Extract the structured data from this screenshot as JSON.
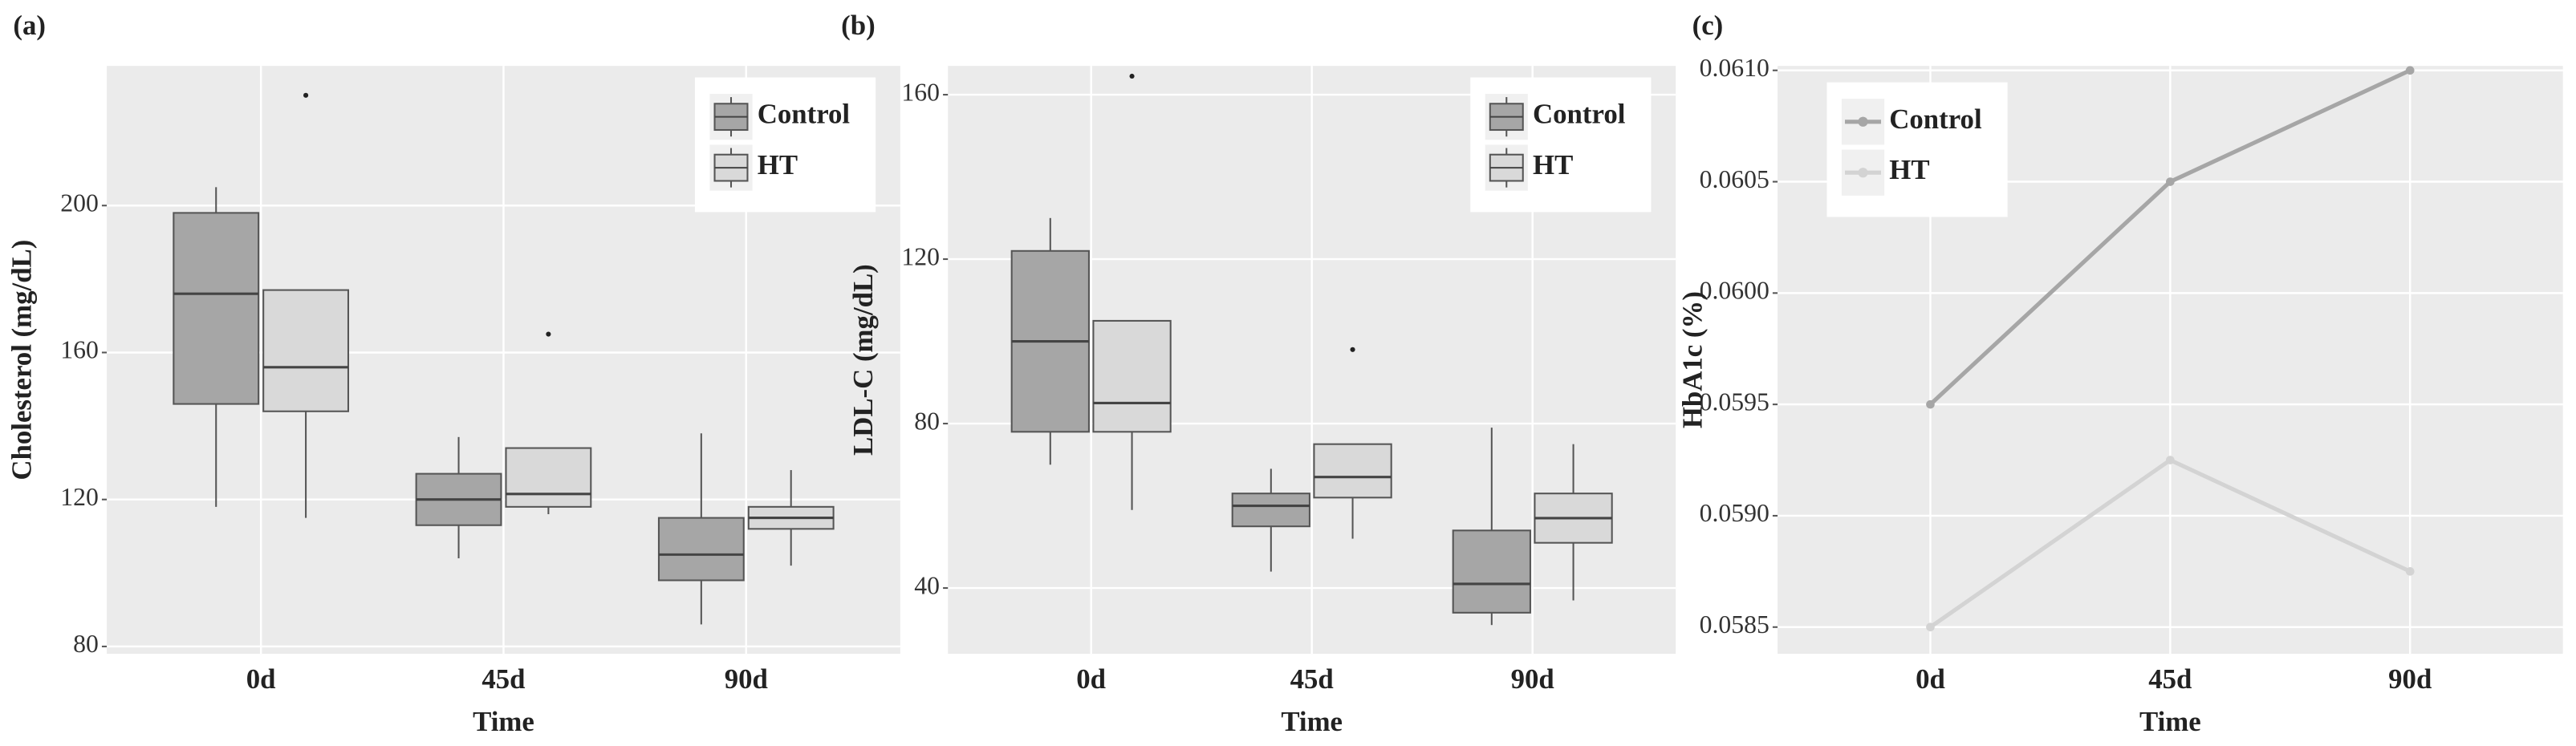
{
  "chart_data": [
    {
      "type": "box",
      "label": "(a)",
      "x_label": "Time",
      "y_label": "Cholesterol (mg/dL)",
      "categories": [
        "0d",
        "45d",
        "90d"
      ],
      "ylim": [
        78,
        238
      ],
      "yticks": [
        80,
        120,
        160,
        200
      ],
      "grid": true,
      "legend": "top-right",
      "series": [
        {
          "name": "Control",
          "color": "#a6a6a6",
          "boxes": [
            {
              "whislo": 118,
              "q1": 146,
              "med": 176,
              "q3": 198,
              "whishi": 205,
              "fliers": []
            },
            {
              "whislo": 104,
              "q1": 113,
              "med": 120,
              "q3": 127,
              "whishi": 137,
              "fliers": []
            },
            {
              "whislo": 86,
              "q1": 98,
              "med": 105,
              "q3": 115,
              "whishi": 138,
              "fliers": []
            }
          ]
        },
        {
          "name": "HT",
          "color": "#d9d9d9",
          "boxes": [
            {
              "whislo": 115,
              "q1": 144,
              "med": 156,
              "q3": 177,
              "whishi": 177,
              "fliers": [
                230
              ]
            },
            {
              "whislo": 116,
              "q1": 118,
              "med": 121.5,
              "q3": 134,
              "whishi": 134,
              "fliers": [
                165
              ]
            },
            {
              "whislo": 102,
              "q1": 112,
              "med": 115,
              "q3": 118,
              "whishi": 128,
              "fliers": []
            }
          ]
        }
      ]
    },
    {
      "type": "box",
      "label": "(b)",
      "x_label": "Time",
      "y_label": "LDL-C (mg/dL)",
      "categories": [
        "0d",
        "45d",
        "90d"
      ],
      "ylim": [
        24,
        167
      ],
      "yticks": [
        40,
        80,
        120,
        160
      ],
      "grid": true,
      "legend": "top-right",
      "series": [
        {
          "name": "Control",
          "color": "#a6a6a6",
          "boxes": [
            {
              "whislo": 70,
              "q1": 78,
              "med": 100,
              "q3": 122,
              "whishi": 130,
              "fliers": []
            },
            {
              "whislo": 44,
              "q1": 55,
              "med": 60,
              "q3": 63,
              "whishi": 69,
              "fliers": []
            },
            {
              "whislo": 31,
              "q1": 34,
              "med": 41,
              "q3": 54,
              "whishi": 79,
              "fliers": []
            }
          ]
        },
        {
          "name": "HT",
          "color": "#d9d9d9",
          "boxes": [
            {
              "whislo": 59,
              "q1": 78,
              "med": 85,
              "q3": 105,
              "whishi": 105,
              "fliers": [
                164.5
              ]
            },
            {
              "whislo": 52,
              "q1": 62,
              "med": 67,
              "q3": 75,
              "whishi": 75,
              "fliers": [
                98
              ]
            },
            {
              "whislo": 37,
              "q1": 51,
              "med": 57,
              "q3": 63,
              "whishi": 75,
              "fliers": []
            }
          ]
        }
      ]
    },
    {
      "type": "line",
      "label": "(c)",
      "x_label": "Time",
      "y_label": "HbA1c (%)",
      "categories": [
        "0d",
        "45d",
        "90d"
      ],
      "ylim": [
        0.05838,
        0.06102
      ],
      "yticks": [
        0.0585,
        {
          "value": 0.059,
          "label": "0.0590"
        },
        0.0595,
        {
          "value": 0.06,
          "label": "0.0600"
        },
        0.0605,
        {
          "value": 0.061,
          "label": "0.0610"
        }
      ],
      "grid": true,
      "legend": "top-left",
      "series": [
        {
          "name": "Control",
          "color": "#a6a6a6",
          "values": [
            0.0595,
            0.0605,
            0.061
          ]
        },
        {
          "name": "HT",
          "color": "#d3d3d3",
          "values": [
            0.0585,
            0.05925,
            0.05875
          ]
        }
      ]
    }
  ]
}
